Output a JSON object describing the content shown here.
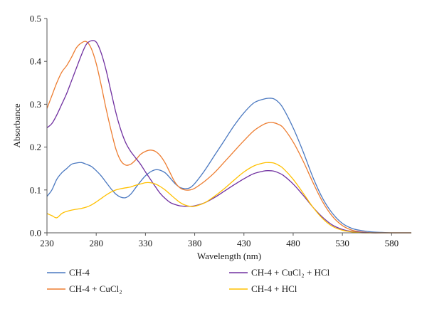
{
  "chart_data": {
    "type": "line",
    "xlabel": "Wavelength (nm)",
    "ylabel": "Absorbance",
    "xlim": [
      230,
      600
    ],
    "ylim": [
      0.0,
      0.5
    ],
    "x_ticks": [
      230,
      280,
      330,
      380,
      430,
      480,
      530,
      580
    ],
    "y_ticks": [
      0.0,
      0.1,
      0.2,
      0.3,
      0.4,
      0.5
    ],
    "x_tick_labels": [
      "230",
      "280",
      "330",
      "380",
      "430",
      "480",
      "530",
      "580"
    ],
    "y_tick_labels": [
      "0.0",
      "0.1",
      "0.2",
      "0.3",
      "0.4",
      "0.5"
    ],
    "grid": false,
    "legend_position": "bottom",
    "series": [
      {
        "name": "CH-4",
        "color": "#4a78c0",
        "x": [
          230,
          235,
          240,
          245,
          250,
          255,
          260,
          265,
          270,
          275,
          280,
          285,
          290,
          295,
          300,
          305,
          310,
          315,
          320,
          325,
          330,
          335,
          340,
          345,
          350,
          355,
          360,
          365,
          370,
          375,
          380,
          390,
          400,
          410,
          420,
          430,
          440,
          450,
          455,
          460,
          465,
          470,
          480,
          490,
          500,
          510,
          520,
          530,
          540,
          550,
          560,
          570,
          580,
          590,
          600
        ],
        "y": [
          0.085,
          0.1,
          0.125,
          0.14,
          0.15,
          0.16,
          0.163,
          0.164,
          0.16,
          0.155,
          0.145,
          0.133,
          0.118,
          0.103,
          0.09,
          0.083,
          0.082,
          0.09,
          0.105,
          0.12,
          0.133,
          0.142,
          0.147,
          0.146,
          0.14,
          0.128,
          0.115,
          0.106,
          0.103,
          0.105,
          0.115,
          0.145,
          0.18,
          0.215,
          0.25,
          0.28,
          0.303,
          0.312,
          0.314,
          0.313,
          0.305,
          0.29,
          0.245,
          0.19,
          0.13,
          0.08,
          0.045,
          0.022,
          0.01,
          0.005,
          0.002,
          0.001,
          0.0,
          0.0,
          0.0
        ]
      },
      {
        "name": "CH-4 + CuCl₂",
        "color": "#ed7d31",
        "x": [
          230,
          235,
          240,
          245,
          250,
          255,
          260,
          265,
          270,
          275,
          280,
          285,
          290,
          295,
          300,
          305,
          310,
          315,
          320,
          325,
          330,
          335,
          340,
          345,
          350,
          355,
          360,
          365,
          370,
          375,
          380,
          390,
          400,
          410,
          420,
          430,
          440,
          450,
          455,
          460,
          465,
          470,
          480,
          490,
          500,
          510,
          520,
          530,
          540,
          550,
          560,
          570,
          580,
          590,
          600
        ],
        "y": [
          0.29,
          0.32,
          0.35,
          0.375,
          0.39,
          0.41,
          0.432,
          0.443,
          0.446,
          0.43,
          0.395,
          0.345,
          0.29,
          0.24,
          0.195,
          0.168,
          0.158,
          0.16,
          0.17,
          0.183,
          0.19,
          0.193,
          0.19,
          0.18,
          0.163,
          0.14,
          0.118,
          0.105,
          0.1,
          0.1,
          0.104,
          0.12,
          0.14,
          0.165,
          0.19,
          0.215,
          0.238,
          0.253,
          0.257,
          0.257,
          0.253,
          0.245,
          0.212,
          0.168,
          0.118,
          0.072,
          0.038,
          0.017,
          0.006,
          0.002,
          0.0,
          0.0,
          0.0,
          0.0,
          0.0
        ]
      },
      {
        "name": "CH-4 + CuCl₂ + HCl",
        "color": "#7030a0",
        "x": [
          230,
          235,
          240,
          245,
          250,
          255,
          260,
          265,
          270,
          275,
          280,
          285,
          290,
          295,
          300,
          305,
          310,
          315,
          320,
          325,
          330,
          335,
          340,
          345,
          350,
          355,
          360,
          365,
          370,
          375,
          380,
          390,
          400,
          410,
          420,
          430,
          440,
          450,
          455,
          460,
          465,
          470,
          480,
          490,
          500,
          510,
          520,
          530,
          540,
          550,
          560,
          570,
          580,
          590,
          600
        ],
        "y": [
          0.245,
          0.255,
          0.275,
          0.3,
          0.325,
          0.355,
          0.385,
          0.415,
          0.44,
          0.448,
          0.445,
          0.42,
          0.38,
          0.33,
          0.28,
          0.24,
          0.21,
          0.19,
          0.175,
          0.16,
          0.142,
          0.125,
          0.108,
          0.092,
          0.08,
          0.071,
          0.066,
          0.063,
          0.062,
          0.062,
          0.063,
          0.07,
          0.082,
          0.097,
          0.112,
          0.126,
          0.138,
          0.144,
          0.145,
          0.144,
          0.14,
          0.134,
          0.114,
          0.088,
          0.06,
          0.036,
          0.018,
          0.008,
          0.003,
          0.001,
          0.0,
          0.0,
          0.0,
          0.0,
          0.0
        ]
      },
      {
        "name": "CH-4 + HCl",
        "color": "#ffc000",
        "x": [
          230,
          235,
          240,
          245,
          250,
          255,
          260,
          265,
          270,
          275,
          280,
          285,
          290,
          295,
          300,
          305,
          310,
          315,
          320,
          325,
          330,
          335,
          340,
          345,
          350,
          355,
          360,
          365,
          370,
          375,
          380,
          390,
          400,
          410,
          420,
          430,
          440,
          450,
          455,
          460,
          465,
          470,
          480,
          490,
          500,
          510,
          520,
          530,
          540,
          550,
          560,
          570,
          580,
          590,
          600
        ],
        "y": [
          0.045,
          0.04,
          0.035,
          0.045,
          0.05,
          0.053,
          0.055,
          0.057,
          0.06,
          0.065,
          0.072,
          0.08,
          0.088,
          0.095,
          0.1,
          0.103,
          0.105,
          0.107,
          0.111,
          0.114,
          0.117,
          0.117,
          0.114,
          0.108,
          0.1,
          0.09,
          0.08,
          0.071,
          0.065,
          0.062,
          0.062,
          0.07,
          0.085,
          0.103,
          0.123,
          0.142,
          0.156,
          0.163,
          0.164,
          0.163,
          0.158,
          0.15,
          0.125,
          0.093,
          0.06,
          0.033,
          0.015,
          0.006,
          0.002,
          0.0,
          0.0,
          0.0,
          0.0,
          0.0,
          0.0
        ]
      }
    ]
  }
}
